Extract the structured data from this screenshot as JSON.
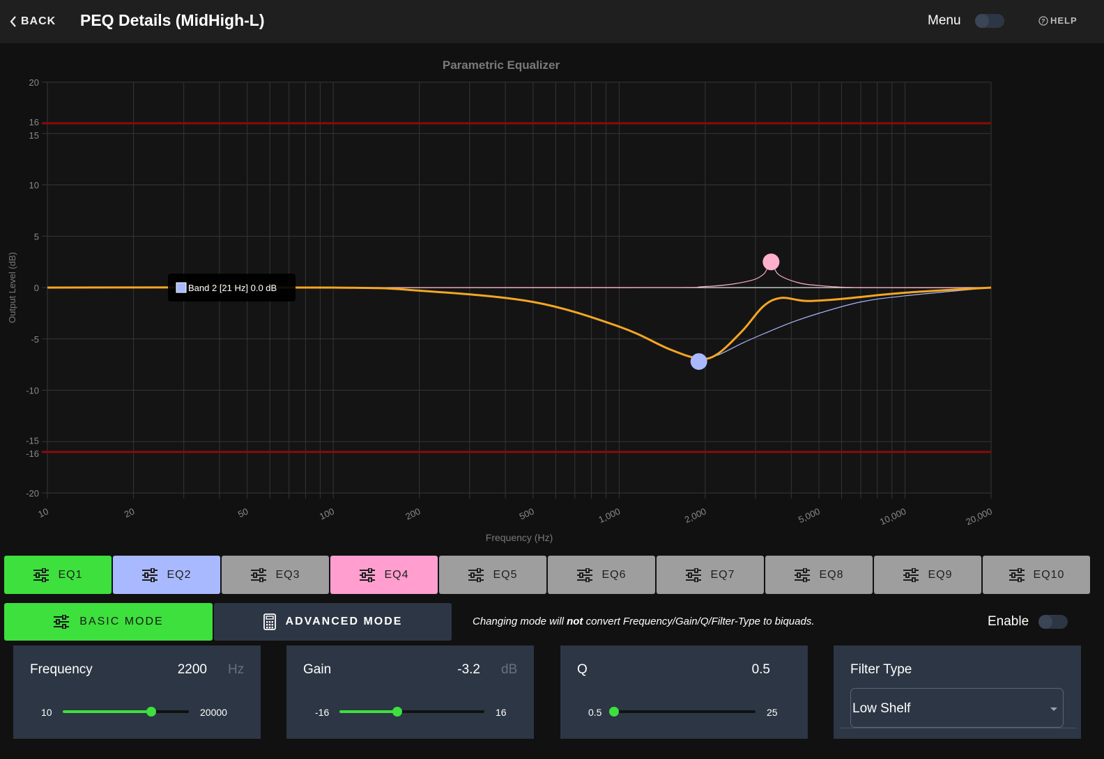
{
  "header": {
    "back_label": "BACK",
    "title": "PEQ Details (MidHigh-L)",
    "menu_label": "Menu",
    "help_label": "HELP"
  },
  "chart_data": {
    "type": "line",
    "title": "Parametric Equalizer",
    "xlabel": "Frequency (Hz)",
    "ylabel": "Output Level (dB)",
    "x_scale": "log",
    "xlim": [
      10,
      20000
    ],
    "ylim": [
      -20,
      20
    ],
    "x_ticks": [
      "10",
      "20",
      "50",
      "100",
      "200",
      "500",
      "1,000",
      "2,000",
      "5,000",
      "10,000",
      "20,000"
    ],
    "x_tick_values": [
      10,
      20,
      50,
      100,
      200,
      500,
      1000,
      2000,
      5000,
      10000,
      20000
    ],
    "y_ticks": [
      "20",
      "16",
      "15",
      "10",
      "5",
      "0",
      "-5",
      "-10",
      "-15",
      "-16",
      "-20"
    ],
    "y_tick_values": [
      20,
      16,
      15,
      10,
      5,
      0,
      -5,
      -10,
      -15,
      -16,
      -20
    ],
    "limit_lines": [
      16,
      -16
    ],
    "grid": true,
    "series": [
      {
        "color": "#f5a623",
        "x": [
          10,
          100,
          200,
          500,
          1000,
          1500,
          1900,
          2200,
          2700,
          3200,
          3700,
          4500,
          6000,
          10000,
          20000
        ],
        "values": [
          0,
          0,
          -0.3,
          -1.4,
          -3.8,
          -6.0,
          -6.9,
          -6.5,
          -4.2,
          -1.8,
          -1.0,
          -1.3,
          -1.1,
          -0.5,
          0
        ]
      },
      {
        "color": "#a9b9ff",
        "x": [
          10,
          100,
          200,
          500,
          1000,
          1500,
          1900,
          2200,
          2700,
          3200,
          4000,
          5000,
          7000,
          10000,
          20000
        ],
        "values": [
          0,
          0,
          -0.3,
          -1.4,
          -3.8,
          -6.0,
          -6.9,
          -6.6,
          -5.4,
          -4.5,
          -3.4,
          -2.5,
          -1.4,
          -0.8,
          0
        ]
      },
      {
        "color": "#ffb0cc",
        "x": [
          10,
          1000,
          2000,
          2800,
          3200,
          3400,
          3600,
          4200,
          5000,
          7000,
          20000
        ],
        "values": [
          0,
          0,
          0.1,
          0.6,
          1.3,
          2.5,
          1.3,
          0.5,
          0.2,
          0,
          0
        ]
      }
    ],
    "points": [
      {
        "band": "EQ2",
        "x": 1900,
        "y": -7.2,
        "color": "#a9b9ff"
      },
      {
        "band": "EQ4",
        "x": 3400,
        "y": 2.5,
        "color": "#ffb0cc"
      }
    ],
    "tooltip": {
      "swatch_color": "#a9b9ff",
      "text": "Band 2 [21 Hz]   0.0 dB"
    }
  },
  "eq_tabs": [
    {
      "label": "EQ1",
      "color": "#3de03d"
    },
    {
      "label": "EQ2",
      "color": "#a9b9ff"
    },
    {
      "label": "EQ3",
      "color": "#9e9e9e"
    },
    {
      "label": "EQ4",
      "color": "#ff9ecf"
    },
    {
      "label": "EQ5",
      "color": "#9e9e9e"
    },
    {
      "label": "EQ6",
      "color": "#9e9e9e"
    },
    {
      "label": "EQ7",
      "color": "#9e9e9e"
    },
    {
      "label": "EQ8",
      "color": "#9e9e9e"
    },
    {
      "label": "EQ9",
      "color": "#9e9e9e"
    },
    {
      "label": "EQ10",
      "color": "#9e9e9e"
    }
  ],
  "modes": {
    "basic_label": "BASIC MODE",
    "advanced_label": "ADVANCED MODE",
    "note_before": "Changing mode will ",
    "note_bold": "not",
    "note_after": " convert Frequency/Gain/Q/Filter-Type to biquads.",
    "enable_label": "Enable"
  },
  "params": {
    "frequency": {
      "label": "Frequency",
      "value": "2200",
      "unit": "Hz",
      "min": "10",
      "max": "20000",
      "fill": 0.7
    },
    "gain": {
      "label": "Gain",
      "value": "-3.2",
      "unit": "dB",
      "min": "-16",
      "max": "16",
      "fill": 0.4
    },
    "q": {
      "label": "Q",
      "value": "0.5",
      "min": "0.5",
      "max": "25",
      "fill": 0.0
    }
  },
  "filter_type": {
    "label": "Filter Type",
    "value": "Low Shelf"
  }
}
